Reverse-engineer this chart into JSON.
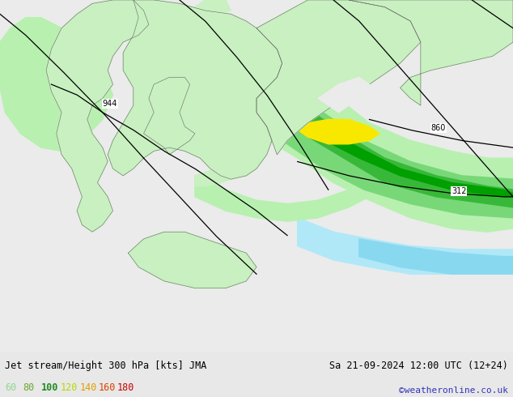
{
  "title_left": "Jet stream/Height 300 hPa [kts] JMA",
  "title_right": "Sa 21-09-2024 12:00 UTC (12+24)",
  "credit": "©weatheronline.co.uk",
  "bg_color": "#e8e8e8",
  "sea_color": "#ebebeb",
  "land_color": "#c8f0c0",
  "figsize": [
    6.34,
    4.9
  ],
  "dpi": 100,
  "jet_band_60_color": "#b8f0b0",
  "jet_band_80_color": "#78d878",
  "jet_band_100_color": "#38b838",
  "jet_band_120_color": "#00a000",
  "jet_band_140_color": "#ffee00",
  "jet_band_below_color": "#b0e8f8",
  "contour_color": "#000000",
  "label_944": "944",
  "label_860": "860",
  "label_312": "312",
  "legend_vals": [
    "60",
    "80",
    "100",
    "120",
    "140",
    "160",
    "180"
  ],
  "legend_colors": [
    "#90d890",
    "#6aaa30",
    "#228b22",
    "#b8d800",
    "#e0a000",
    "#e04000",
    "#cc0000"
  ]
}
